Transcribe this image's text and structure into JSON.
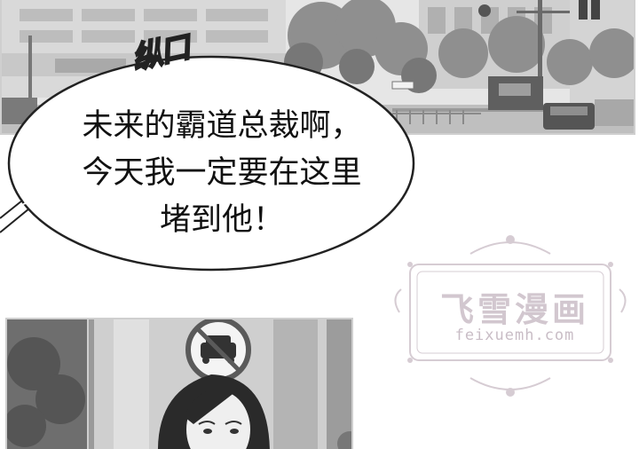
{
  "comic": {
    "sound_effect": "纵口",
    "speech_bubble": {
      "lines": [
        "未来的霸道总裁啊，",
        "今天我一定要在这里",
        "堵到他！"
      ]
    },
    "watermark": {
      "title": "飞雪漫画",
      "url": "feixuemh.com"
    },
    "colors": {
      "panel_border": "#cfcfcf",
      "ink": "#111111",
      "watermark": "#d2c7cf"
    }
  }
}
